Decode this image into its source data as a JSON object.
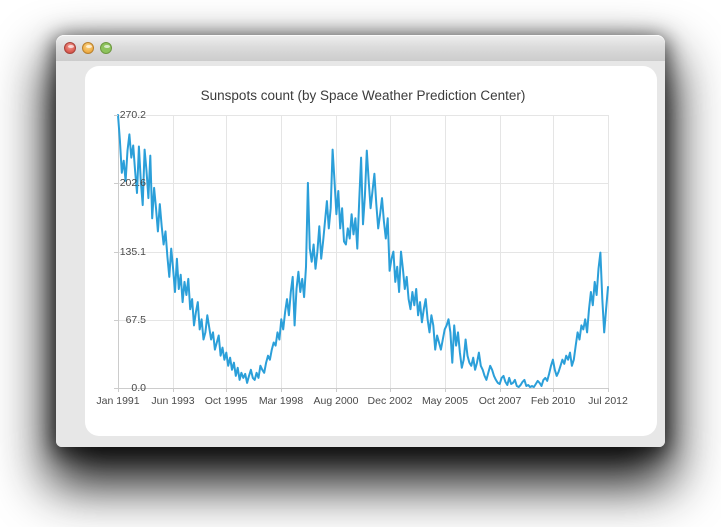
{
  "window": {
    "buttons": {
      "close": "close",
      "minimize": "minimize",
      "zoom": "zoom"
    }
  },
  "colors": {
    "line": "#2b9fd9",
    "grid": "#e5e5e5",
    "axis": "#cccccc",
    "label": "#4a4a4a",
    "panel_bg": "#ffffff",
    "window_bg": "#e7e7e7"
  },
  "chart_data": {
    "type": "line",
    "title": "Sunspots count (by Space Weather Prediction Center)",
    "xlabel": "",
    "ylabel": "",
    "legend": "none",
    "grid": true,
    "ylim": [
      0,
      270.2
    ],
    "y_tick_values": [
      0,
      67.5,
      135.1,
      202.6,
      270.2
    ],
    "y_tick_labels": [
      "0.0",
      "67.5",
      "135.1",
      "202.6",
      "270.2"
    ],
    "x_tick_labels": [
      "Jan 1991",
      "Jun 1993",
      "Oct 1995",
      "Mar 1998",
      "Aug 2000",
      "Dec 2002",
      "May 2005",
      "Oct 2007",
      "Feb 2010",
      "Jul 2012"
    ],
    "x_tick_month_indices": [
      0,
      29,
      57,
      86,
      115,
      143,
      172,
      201,
      229,
      258
    ],
    "x_unit": "month",
    "x_range": [
      "Jan 1991",
      "Jul 2012"
    ],
    "series": [
      {
        "name": "Sunspots count",
        "color": "#2b9fd9",
        "values": [
          270.2,
          245,
          213,
          225,
          205,
          235,
          251,
          228,
          240,
          215,
          193,
          239,
          205,
          181,
          236,
          215,
          188,
          230,
          168,
          198,
          178,
          155,
          182,
          160,
          142,
          155,
          130,
          110,
          138,
          118,
          95,
          128,
          98,
          112,
          85,
          105,
          92,
          108,
          78,
          88,
          62,
          75,
          85,
          58,
          68,
          48,
          55,
          72,
          60,
          48,
          55,
          38,
          45,
          52,
          32,
          40,
          28,
          35,
          22,
          30,
          18,
          25,
          12,
          20,
          8,
          15,
          10,
          14,
          5,
          12,
          18,
          10,
          8,
          15,
          10,
          22,
          18,
          15,
          25,
          32,
          28,
          38,
          45,
          42,
          55,
          48,
          68,
          58,
          75,
          88,
          72,
          95,
          110,
          62,
          98,
          115,
          95,
          108,
          90,
          120,
          203,
          138,
          125,
          142,
          118,
          135,
          160,
          128,
          145,
          165,
          185,
          158,
          178,
          236,
          205,
          172,
          195,
          158,
          178,
          145,
          142,
          158,
          148,
          172,
          152,
          168,
          138,
          185,
          228,
          162,
          190,
          235,
          205,
          178,
          195,
          212,
          182,
          158,
          172,
          188,
          165,
          148,
          168,
          116,
          128,
          135,
          105,
          120,
          95,
          135,
          118,
          98,
          110,
          88,
          78,
          95,
          82,
          98,
          72,
          85,
          65,
          78,
          88,
          68,
          55,
          72,
          62,
          38,
          52,
          45,
          38,
          48,
          58,
          62,
          68,
          55,
          25,
          62,
          42,
          55,
          35,
          20,
          28,
          48,
          32,
          25,
          22,
          30,
          18,
          25,
          35,
          22,
          18,
          12,
          8,
          15,
          22,
          18,
          12,
          8,
          5,
          4,
          10,
          12,
          6,
          3,
          10,
          4,
          5,
          8,
          2,
          1,
          3,
          6,
          8,
          2,
          3,
          1,
          2,
          1,
          4,
          7,
          5,
          2,
          8,
          10,
          7,
          14,
          22,
          28,
          18,
          12,
          16,
          22,
          28,
          24,
          32,
          28,
          35,
          22,
          28,
          42,
          55,
          48,
          62,
          58,
          68,
          55,
          78,
          95,
          82,
          105,
          92,
          118,
          134,
          88,
          55,
          78,
          100
        ]
      }
    ]
  }
}
